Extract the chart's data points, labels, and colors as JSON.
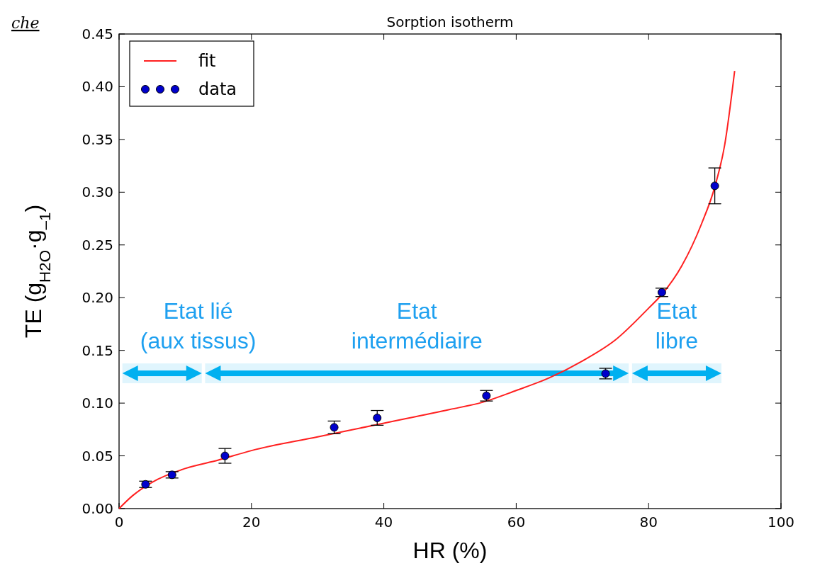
{
  "chart_data": {
    "type": "scatter",
    "title": "Sorption isotherm",
    "xlabel": "HR (%)",
    "ylabel": "TE (g$_{H2O}$·g$_{–1}$)",
    "xlim": [
      0,
      100
    ],
    "xticks": [
      0,
      20,
      40,
      60,
      80,
      100
    ],
    "ylim": [
      0,
      0.45
    ],
    "yticks": [
      {
        "value": 0,
        "label": "0.00"
      },
      0.05,
      {
        "value": 0.1,
        "label": "0.10"
      },
      0.15,
      {
        "value": 0.2,
        "label": "0.20"
      },
      0.25,
      {
        "value": 0.3,
        "label": "0.30"
      },
      0.35,
      {
        "value": 0.4,
        "label": "0.40"
      },
      0.45
    ],
    "grid": false,
    "legend": "top left",
    "marker": "circle",
    "series": [
      {
        "name": "fit",
        "type": "line",
        "marker": "none",
        "color": "#ff2020",
        "line_style": "solid",
        "x": [
          0,
          2,
          5,
          10,
          15,
          20,
          30,
          40,
          50,
          55,
          60,
          65,
          70,
          75,
          80,
          82,
          85,
          88,
          90,
          91.5,
          93
        ],
        "values": [
          0,
          0.012,
          0.025,
          0.038,
          0.046,
          0.055,
          0.068,
          0.081,
          0.094,
          0.101,
          0.112,
          0.124,
          0.14,
          0.16,
          0.19,
          0.203,
          0.23,
          0.27,
          0.305,
          0.345,
          0.415
        ]
      },
      {
        "name": "data",
        "color": "#0000cc",
        "x": [
          4,
          8,
          16,
          32.5,
          39,
          55.5,
          73.5,
          82,
          90
        ],
        "values": [
          0.023,
          0.032,
          0.05,
          0.077,
          0.086,
          0.107,
          0.128,
          0.205,
          0.306
        ],
        "errors": [
          0.003,
          0.003,
          0.007,
          0.006,
          0.007,
          0.005,
          0.005,
          0.004,
          0.017
        ]
      }
    ],
    "bands": [
      {
        "axis": "x",
        "from": 0.5,
        "to": 12.5,
        "label": "Etat lié\n(aux tissus)",
        "color": "#00b0f0"
      },
      {
        "axis": "x",
        "from": 13,
        "to": 77,
        "label": "Etat\nintermédiaire",
        "color": "#00b0f0"
      },
      {
        "axis": "x",
        "from": 77.5,
        "to": 91,
        "label": "Etat\nlibre",
        "color": "#00b0f0"
      }
    ],
    "annotations": [
      "che"
    ]
  }
}
